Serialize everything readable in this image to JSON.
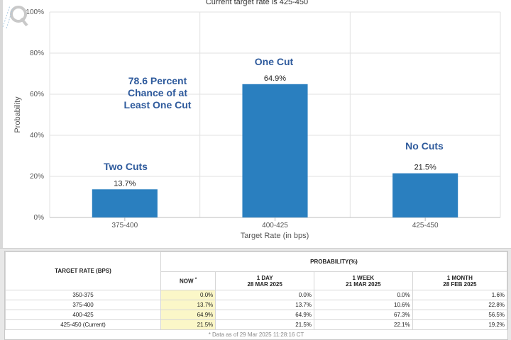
{
  "chart_data": {
    "type": "bar",
    "subtitle": "Current target rate is 425-450",
    "categories": [
      "375-400",
      "400-425",
      "425-450"
    ],
    "values": [
      13.7,
      64.9,
      21.5
    ],
    "value_labels": [
      "13.7%",
      "64.9%",
      "21.5%"
    ],
    "xlabel": "Target Rate (in bps)",
    "ylabel": "Probability",
    "ylim": [
      0,
      100
    ],
    "yticks": [
      0,
      20,
      40,
      60,
      80,
      100
    ],
    "ytick_labels": [
      "0%",
      "20%",
      "40%",
      "60%",
      "80%",
      "100%"
    ],
    "grid": true,
    "bar_color": "#2a7fbf",
    "annotations": {
      "two_cuts": "Two Cuts",
      "one_cut": "One Cut",
      "no_cuts": "No Cuts",
      "chance_line1": "78.6 Percent",
      "chance_line2": "Chance of at",
      "chance_line3": "Least One Cut"
    },
    "annotation_color": "#2e5a9c"
  },
  "table": {
    "target_rate_header": "TARGET RATE (BPS)",
    "probability_header": "PROBABILITY(%)",
    "columns": [
      {
        "line1": "NOW",
        "line2": "",
        "note": "*"
      },
      {
        "line1": "1 DAY",
        "line2": "28 MAR 2025"
      },
      {
        "line1": "1 WEEK",
        "line2": "21 MAR 2025"
      },
      {
        "line1": "1 MONTH",
        "line2": "28 FEB 2025"
      }
    ],
    "rows": [
      {
        "rate": "350-375",
        "now": "0.0%",
        "day": "0.0%",
        "week": "0.0%",
        "month": "1.6%"
      },
      {
        "rate": "375-400",
        "now": "13.7%",
        "day": "13.7%",
        "week": "10.6%",
        "month": "22.8%"
      },
      {
        "rate": "400-425",
        "now": "64.9%",
        "day": "64.9%",
        "week": "67.3%",
        "month": "56.5%"
      },
      {
        "rate": "425-450 (Current)",
        "now": "21.5%",
        "day": "21.5%",
        "week": "22.1%",
        "month": "19.2%"
      }
    ],
    "footnote": "* Data as of 29 Mar 2025 11:28:16 CT"
  }
}
